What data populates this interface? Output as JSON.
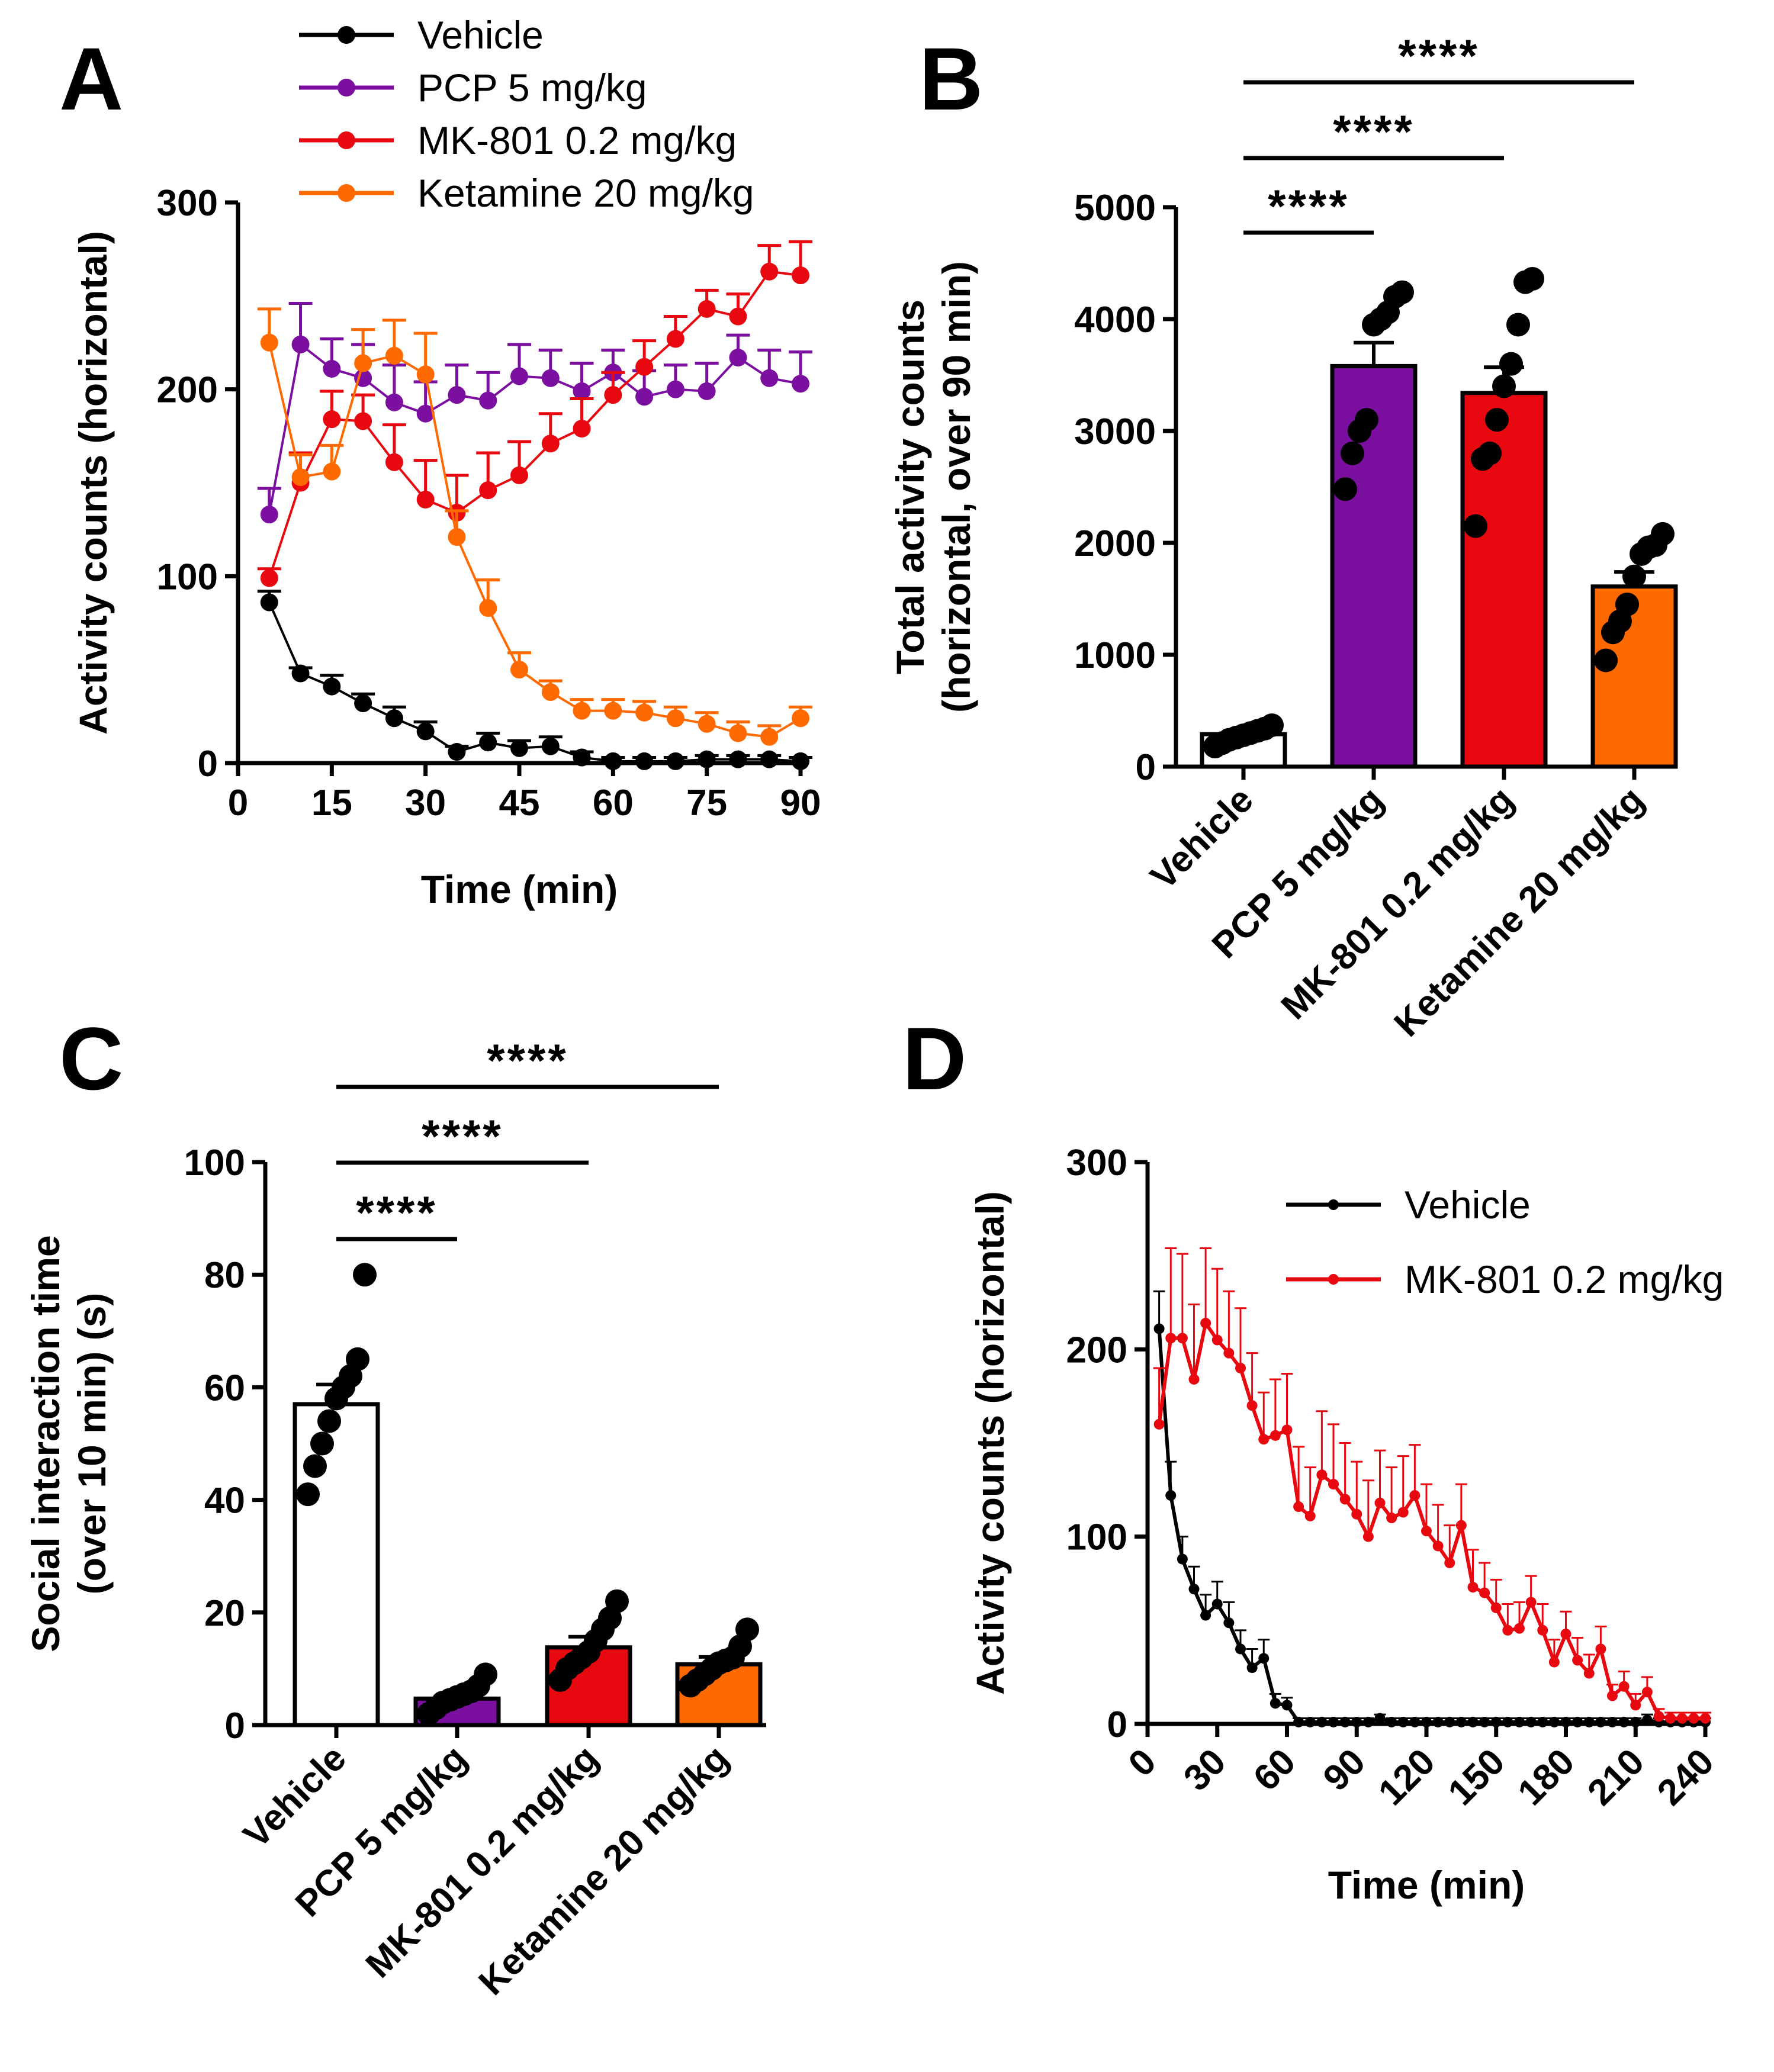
{
  "colors": {
    "Vehicle": "#000000",
    "PCP": "#7B0FA0",
    "MK801": "#E8080F",
    "Ketamine": "#FF6A00",
    "vehicle_bar": "#FFFFFF"
  },
  "chart_data": [
    {
      "id": "A",
      "panel_label": "A",
      "type": "line",
      "xlabel": "Time (min)",
      "ylabel": "Activity counts (horizontal)",
      "xlim": [
        0,
        90
      ],
      "ylim": [
        0,
        300
      ],
      "xticks": [
        0,
        15,
        30,
        45,
        60,
        75,
        90
      ],
      "yticks": [
        0,
        100,
        200,
        300
      ],
      "x": [
        5,
        10,
        15,
        20,
        25,
        30,
        35,
        40,
        45,
        50,
        55,
        60,
        65,
        70,
        75,
        80,
        85,
        90
      ],
      "legend": [
        "Vehicle",
        "PCP 5 mg/kg",
        "MK-801 0.2 mg/kg",
        "Ketamine 20 mg/kg"
      ],
      "series": [
        {
          "name": "Vehicle",
          "color": "#000000",
          "values": [
            86,
            48,
            41,
            32,
            24,
            17,
            6,
            11,
            8,
            9,
            3,
            1,
            1,
            1,
            2,
            2,
            2,
            1
          ],
          "err": [
            6,
            3,
            6,
            5,
            6,
            5,
            3,
            5,
            4,
            5,
            3,
            2,
            2,
            2,
            2,
            2,
            2,
            2
          ]
        },
        {
          "name": "PCP 5 mg/kg",
          "color": "#7B0FA0",
          "values": [
            133,
            224,
            211,
            206,
            193,
            187,
            197,
            194,
            207,
            206,
            199,
            209,
            196,
            200,
            199,
            217,
            206,
            203
          ],
          "err": [
            14,
            22,
            16,
            18,
            20,
            17,
            16,
            15,
            17,
            15,
            15,
            12,
            14,
            13,
            15,
            12,
            15,
            17
          ]
        },
        {
          "name": "MK-801 0.2 mg/kg",
          "color": "#E8080F",
          "values": [
            99,
            150,
            184,
            183,
            161,
            141,
            134,
            146,
            154,
            171,
            179,
            197,
            212,
            227,
            243,
            239,
            263,
            261
          ],
          "err": [
            5,
            16,
            15,
            14,
            20,
            21,
            20,
            20,
            18,
            16,
            16,
            12,
            14,
            12,
            10,
            12,
            14,
            18
          ]
        },
        {
          "name": "Ketamine 20 mg/kg",
          "color": "#FF6A00",
          "values": [
            225,
            153,
            156,
            214,
            218,
            208,
            121,
            83,
            50,
            38,
            28,
            28,
            27,
            24,
            21,
            16,
            14,
            24
          ],
          "err": [
            18,
            12,
            14,
            18,
            19,
            22,
            14,
            15,
            9,
            6,
            6,
            6,
            6,
            6,
            6,
            6,
            6,
            6
          ]
        }
      ]
    },
    {
      "id": "B",
      "panel_label": "B",
      "type": "bar",
      "ylabel_lines": [
        "Total activity counts",
        "(horizontal, over 90 min)"
      ],
      "categories": [
        "Vehicle",
        "PCP 5 mg/kg",
        "MK-801 0.2 mg/kg",
        "Ketamine 20 mg/kg"
      ],
      "values": [
        290,
        3580,
        3340,
        1610
      ],
      "err": [
        30,
        210,
        230,
        130
      ],
      "points": [
        [
          180,
          210,
          240,
          260,
          280,
          300,
          320,
          340,
          370
        ],
        [
          2480,
          2800,
          3000,
          3100,
          3950,
          4000,
          4060,
          4200,
          4240
        ],
        [
          2150,
          2750,
          2800,
          3100,
          3400,
          3600,
          3950,
          4330,
          4360
        ],
        [
          950,
          1200,
          1300,
          1450,
          1700,
          1900,
          1960,
          1980,
          2080
        ]
      ],
      "ylim": [
        0,
        5000
      ],
      "yticks": [
        0,
        1000,
        2000,
        3000,
        4000,
        5000
      ],
      "significance": [
        {
          "from": 0,
          "to": 1,
          "label": "****"
        },
        {
          "from": 0,
          "to": 2,
          "label": "****"
        },
        {
          "from": 0,
          "to": 3,
          "label": "****"
        }
      ]
    },
    {
      "id": "C",
      "panel_label": "C",
      "type": "bar",
      "ylabel_lines": [
        "Social interaction time",
        "(over 10 min) (s)"
      ],
      "categories": [
        "Vehicle",
        "PCP 5 mg/kg",
        "MK-801 0.2 mg/kg",
        "Ketamine 20 mg/kg"
      ],
      "values": [
        57,
        4.7,
        13.8,
        10.8
      ],
      "err": [
        3.5,
        0.8,
        1.9,
        1.3
      ],
      "points": [
        [
          41,
          46,
          50,
          54,
          58,
          60,
          62,
          65,
          80
        ],
        [
          2,
          3,
          4,
          4.5,
          5,
          5.5,
          6,
          7,
          9
        ],
        [
          8,
          10,
          11,
          12,
          13,
          15,
          17,
          19,
          22
        ],
        [
          7,
          8,
          9,
          10,
          11,
          11.5,
          12,
          14,
          17
        ]
      ],
      "ylim": [
        0,
        100
      ],
      "yticks": [
        0,
        20,
        40,
        60,
        80,
        100
      ],
      "significance": [
        {
          "from": 0,
          "to": 1,
          "label": "****"
        },
        {
          "from": 0,
          "to": 2,
          "label": "****"
        },
        {
          "from": 0,
          "to": 3,
          "label": "****"
        }
      ]
    },
    {
      "id": "D",
      "panel_label": "D",
      "type": "line",
      "xlabel": "Time (min)",
      "ylabel": "Activity counts (horizontal)",
      "xlim": [
        0,
        240
      ],
      "ylim": [
        0,
        300
      ],
      "xticks": [
        0,
        30,
        60,
        90,
        120,
        150,
        180,
        210,
        240
      ],
      "yticks": [
        0,
        100,
        200,
        300
      ],
      "legend": [
        "Vehicle",
        "MK-801 0.2 mg/kg"
      ],
      "x": [
        5,
        10,
        15,
        20,
        25,
        30,
        35,
        40,
        45,
        50,
        55,
        60,
        65,
        70,
        75,
        80,
        85,
        90,
        95,
        100,
        105,
        110,
        115,
        120,
        125,
        130,
        135,
        140,
        145,
        150,
        155,
        160,
        165,
        170,
        175,
        180,
        185,
        190,
        195,
        200,
        205,
        210,
        215,
        220,
        225,
        230,
        235,
        240
      ],
      "series": [
        {
          "name": "Vehicle",
          "color": "#000000",
          "values": [
            211,
            122,
            88,
            72,
            58,
            64,
            54,
            40,
            30,
            35,
            11,
            10,
            1,
            1,
            1,
            1,
            1,
            1,
            1,
            3,
            1,
            1,
            1,
            1,
            1,
            1,
            1,
            1,
            1,
            1,
            1,
            1,
            1,
            1,
            1,
            1,
            1,
            1,
            1,
            1,
            1,
            1,
            2,
            1,
            1,
            1,
            1,
            1
          ],
          "err": [
            20,
            18,
            12,
            12,
            11,
            12,
            11,
            10,
            10,
            10,
            5,
            4,
            2,
            2,
            2,
            2,
            2,
            2,
            2,
            2,
            2,
            2,
            2,
            2,
            2,
            2,
            2,
            2,
            2,
            2,
            2,
            2,
            2,
            2,
            2,
            2,
            2,
            2,
            2,
            2,
            2,
            2,
            3,
            2,
            2,
            2,
            2,
            2
          ]
        },
        {
          "name": "MK-801 0.2 mg/kg",
          "color": "#E8080F",
          "values": [
            160,
            206,
            206,
            184,
            214,
            205,
            198,
            190,
            170,
            152,
            154,
            157,
            116,
            111,
            133,
            128,
            120,
            112,
            100,
            118,
            110,
            113,
            122,
            103,
            95,
            86,
            106,
            73,
            70,
            62,
            50,
            51,
            65,
            50,
            33,
            48,
            34,
            27,
            40,
            15,
            20,
            10,
            17,
            4,
            3,
            3,
            3,
            3
          ],
          "err": [
            30,
            48,
            45,
            40,
            40,
            38,
            33,
            32,
            28,
            25,
            30,
            30,
            32,
            26,
            34,
            32,
            30,
            28,
            30,
            28,
            27,
            30,
            27,
            25,
            22,
            20,
            22,
            20,
            16,
            15,
            14,
            14,
            14,
            14,
            12,
            12,
            12,
            10,
            12,
            6,
            8,
            6,
            8,
            4,
            3,
            3,
            3,
            3
          ]
        }
      ]
    }
  ]
}
